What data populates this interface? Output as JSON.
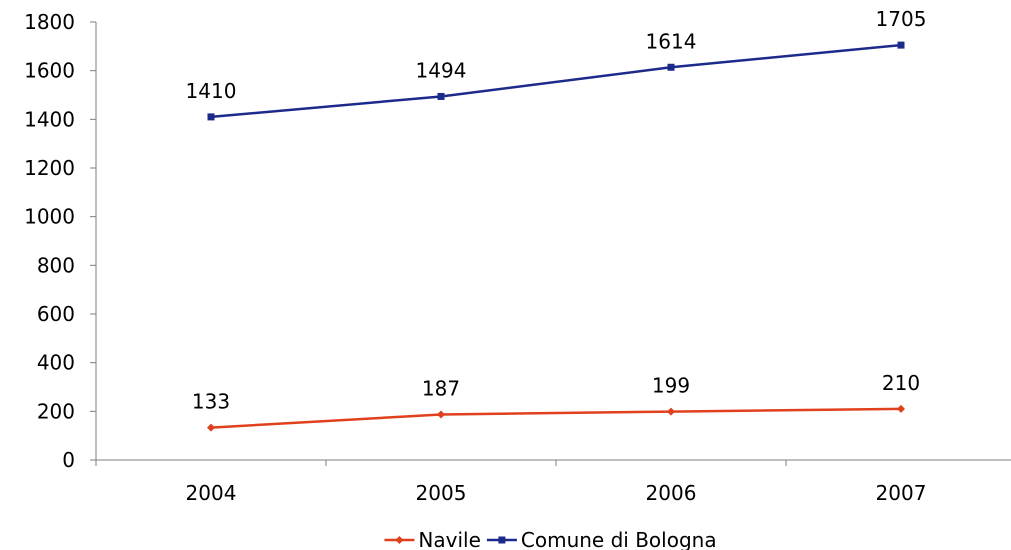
{
  "chart_data": {
    "type": "line",
    "categories": [
      "2004",
      "2005",
      "2006",
      "2007"
    ],
    "series": [
      {
        "name": "Navile",
        "values": [
          133,
          187,
          199,
          210
        ],
        "color": "#e0401c",
        "marker": "diamond"
      },
      {
        "name": "Comune di Bologna",
        "values": [
          1410,
          1494,
          1614,
          1705
        ],
        "color": "#1c2a8c",
        "marker": "square"
      }
    ],
    "ylim": [
      0,
      1800
    ],
    "yticks": [
      0,
      200,
      400,
      600,
      800,
      1000,
      1200,
      1400,
      1600,
      1800
    ],
    "grid": false,
    "legend_position": "bottom"
  }
}
